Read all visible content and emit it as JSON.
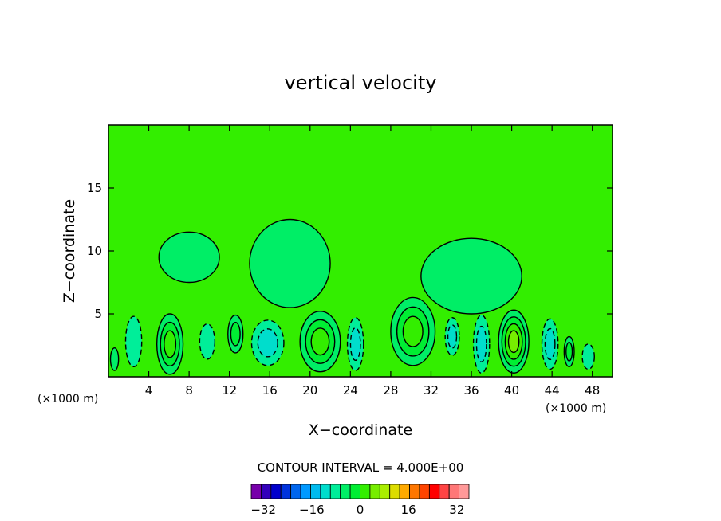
{
  "chart_data": {
    "type": "heatmap",
    "title": "vertical velocity",
    "xlabel": "X−coordinate",
    "ylabel": "Z−coordinate",
    "x_unit_left": "(×1000 m)",
    "x_unit_right": "(×1000 m)",
    "xlim": [
      0,
      50
    ],
    "ylim": [
      0,
      20
    ],
    "x_ticks": [
      4,
      8,
      12,
      16,
      20,
      24,
      28,
      32,
      36,
      40,
      44,
      48
    ],
    "y_ticks": [
      5,
      10,
      15
    ],
    "contour_interval_text": "CONTOUR INTERVAL = 4.000E+00",
    "colorbar": {
      "min": -36,
      "max": 36,
      "step": 4,
      "tick_values": [
        -32,
        -16,
        0,
        16,
        32
      ],
      "tick_labels": [
        "−32",
        "−16",
        "0",
        "16",
        "32"
      ],
      "colors": [
        "#7700aa",
        "#3300bb",
        "#0000cc",
        "#0033dd",
        "#0066ee",
        "#0099ff",
        "#00bbee",
        "#00ddcc",
        "#00ee99",
        "#00ee66",
        "#00ee33",
        "#33ee00",
        "#77ee00",
        "#aaee00",
        "#dddd00",
        "#ffaa00",
        "#ff7700",
        "#ff4400",
        "#ff0000",
        "#ff4444",
        "#ff7777",
        "#ff9999"
      ]
    },
    "cells": [
      {
        "x": 2.5,
        "y": 2.8,
        "w": 1.6,
        "h": 4.0,
        "value": -4
      },
      {
        "x": 6.1,
        "y": 2.6,
        "w": 2.6,
        "h": 4.8,
        "value": 12
      },
      {
        "x": 9.8,
        "y": 2.8,
        "w": 1.5,
        "h": 2.8,
        "value": -4
      },
      {
        "x": 12.6,
        "y": 3.4,
        "w": 1.5,
        "h": 3.0,
        "value": 8
      },
      {
        "x": 15.8,
        "y": 2.7,
        "w": 3.2,
        "h": 3.6,
        "value": -6
      },
      {
        "x": 21.0,
        "y": 2.8,
        "w": 4.0,
        "h": 4.8,
        "value": 12
      },
      {
        "x": 24.5,
        "y": 2.6,
        "w": 1.6,
        "h": 4.2,
        "value": -8
      },
      {
        "x": 30.2,
        "y": 3.6,
        "w": 4.4,
        "h": 5.4,
        "value": 10
      },
      {
        "x": 34.1,
        "y": 3.2,
        "w": 1.4,
        "h": 3.0,
        "value": -6
      },
      {
        "x": 37.0,
        "y": 2.6,
        "w": 1.6,
        "h": 4.6,
        "value": -8
      },
      {
        "x": 40.2,
        "y": 2.8,
        "w": 3.0,
        "h": 5.0,
        "value": 14
      },
      {
        "x": 43.8,
        "y": 2.6,
        "w": 1.6,
        "h": 4.0,
        "value": -8
      },
      {
        "x": 45.7,
        "y": 2.0,
        "w": 1.0,
        "h": 2.4,
        "value": 6
      },
      {
        "x": 47.6,
        "y": 1.6,
        "w": 1.2,
        "h": 2.0,
        "value": -4
      },
      {
        "x": 0.6,
        "y": 1.4,
        "w": 0.8,
        "h": 1.8,
        "value": 4
      },
      {
        "x": 18.0,
        "y": 9.0,
        "w": 8.0,
        "h": 7.0,
        "value": 2
      },
      {
        "x": 36.0,
        "y": 8.0,
        "w": 10.0,
        "h": 6.0,
        "value": 2
      },
      {
        "x": 8.0,
        "y": 9.5,
        "w": 6.0,
        "h": 4.0,
        "value": 2
      }
    ]
  }
}
